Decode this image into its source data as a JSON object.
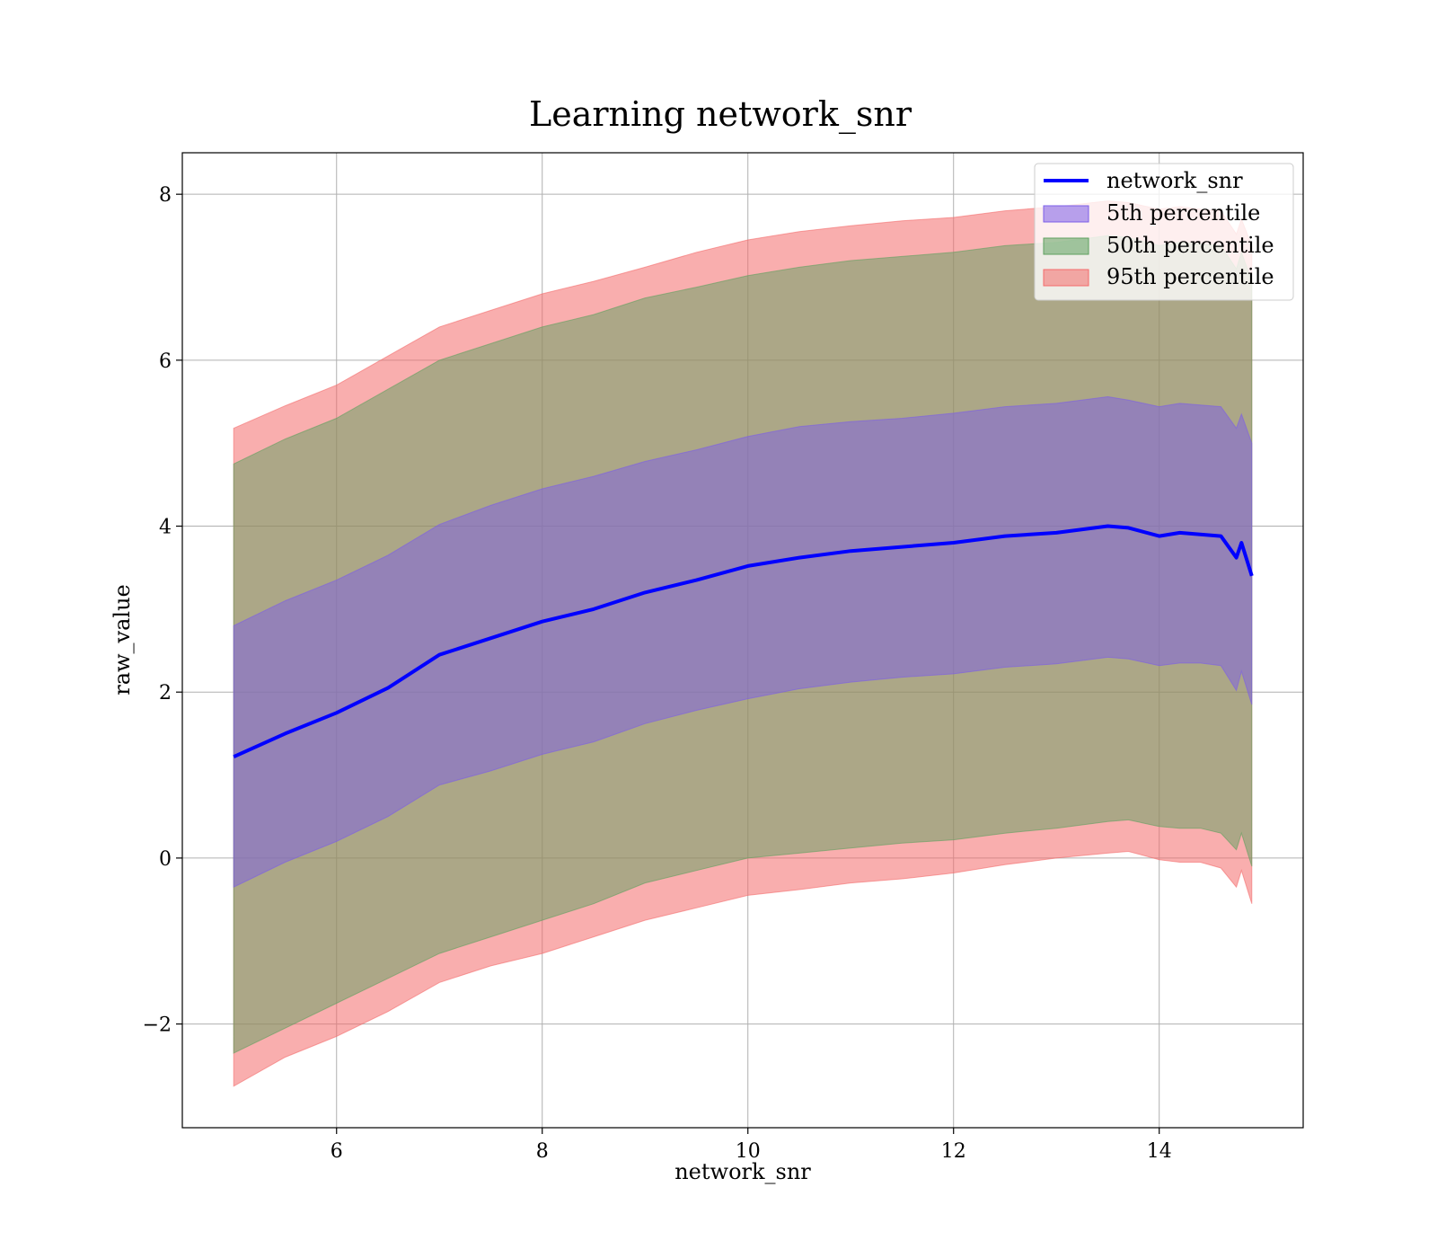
{
  "chart_data": {
    "type": "area",
    "title": "Learning network_snr",
    "xlabel": "network_snr",
    "ylabel": "raw_value",
    "xlim": [
      4.5,
      15.4
    ],
    "ylim": [
      -3.25,
      8.5
    ],
    "xticks": [
      6,
      8,
      10,
      12,
      14
    ],
    "xtick_labels": [
      "6",
      "8",
      "10",
      "12",
      "14"
    ],
    "yticks": [
      -2,
      0,
      2,
      4,
      6,
      8
    ],
    "ytick_labels": [
      "−2",
      "0",
      "2",
      "4",
      "6",
      "8"
    ],
    "grid": true,
    "legend_position": "top-right",
    "x": [
      5.0,
      5.5,
      6.0,
      6.5,
      7.0,
      7.5,
      8.0,
      8.5,
      9.0,
      9.5,
      10.0,
      10.5,
      11.0,
      11.5,
      12.0,
      12.5,
      13.0,
      13.5,
      13.7,
      14.0,
      14.2,
      14.4,
      14.6,
      14.75,
      14.8,
      14.9
    ],
    "median": [
      1.22,
      1.5,
      1.75,
      2.05,
      2.45,
      2.65,
      2.85,
      3.0,
      3.2,
      3.35,
      3.52,
      3.62,
      3.7,
      3.75,
      3.8,
      3.88,
      3.92,
      4.0,
      3.98,
      3.88,
      3.92,
      3.9,
      3.88,
      3.62,
      3.8,
      3.4
    ],
    "series": [
      {
        "name": "5th percentile",
        "color": "#7b5de8",
        "lower": [
          -0.35,
          -0.05,
          0.2,
          0.5,
          0.88,
          1.05,
          1.25,
          1.4,
          1.62,
          1.78,
          1.92,
          2.04,
          2.12,
          2.18,
          2.22,
          2.3,
          2.34,
          2.42,
          2.4,
          2.32,
          2.35,
          2.35,
          2.32,
          2.02,
          2.25,
          1.85
        ],
        "upper": [
          2.8,
          3.1,
          3.35,
          3.65,
          4.02,
          4.25,
          4.45,
          4.6,
          4.78,
          4.92,
          5.08,
          5.2,
          5.26,
          5.3,
          5.36,
          5.44,
          5.48,
          5.56,
          5.52,
          5.44,
          5.48,
          5.46,
          5.44,
          5.18,
          5.35,
          5.0
        ]
      },
      {
        "name": "50th percentile",
        "color": "#5fa05f",
        "lower": [
          -2.35,
          -2.05,
          -1.75,
          -1.45,
          -1.15,
          -0.95,
          -0.75,
          -0.55,
          -0.3,
          -0.15,
          0.0,
          0.06,
          0.12,
          0.18,
          0.22,
          0.3,
          0.36,
          0.44,
          0.46,
          0.38,
          0.36,
          0.36,
          0.3,
          0.1,
          0.3,
          -0.1
        ],
        "upper": [
          4.75,
          5.05,
          5.3,
          5.65,
          6.0,
          6.2,
          6.4,
          6.55,
          6.75,
          6.88,
          7.02,
          7.12,
          7.2,
          7.25,
          7.3,
          7.38,
          7.42,
          7.5,
          7.48,
          7.38,
          7.42,
          7.4,
          7.38,
          7.1,
          7.3,
          6.95
        ]
      },
      {
        "name": "95th percentile",
        "color": "#f46b6b",
        "lower": [
          -2.75,
          -2.4,
          -2.15,
          -1.85,
          -1.5,
          -1.3,
          -1.15,
          -0.95,
          -0.75,
          -0.6,
          -0.45,
          -0.38,
          -0.3,
          -0.25,
          -0.18,
          -0.08,
          0.0,
          0.06,
          0.08,
          -0.02,
          -0.05,
          -0.05,
          -0.12,
          -0.35,
          -0.15,
          -0.55
        ],
        "upper": [
          5.18,
          5.45,
          5.7,
          6.05,
          6.4,
          6.6,
          6.8,
          6.95,
          7.12,
          7.3,
          7.45,
          7.55,
          7.62,
          7.68,
          7.72,
          7.8,
          7.85,
          7.92,
          7.9,
          7.82,
          7.85,
          7.82,
          7.8,
          7.52,
          7.7,
          7.38
        ]
      }
    ],
    "line_series": {
      "name": "network_snr",
      "color": "#0000ff"
    }
  }
}
